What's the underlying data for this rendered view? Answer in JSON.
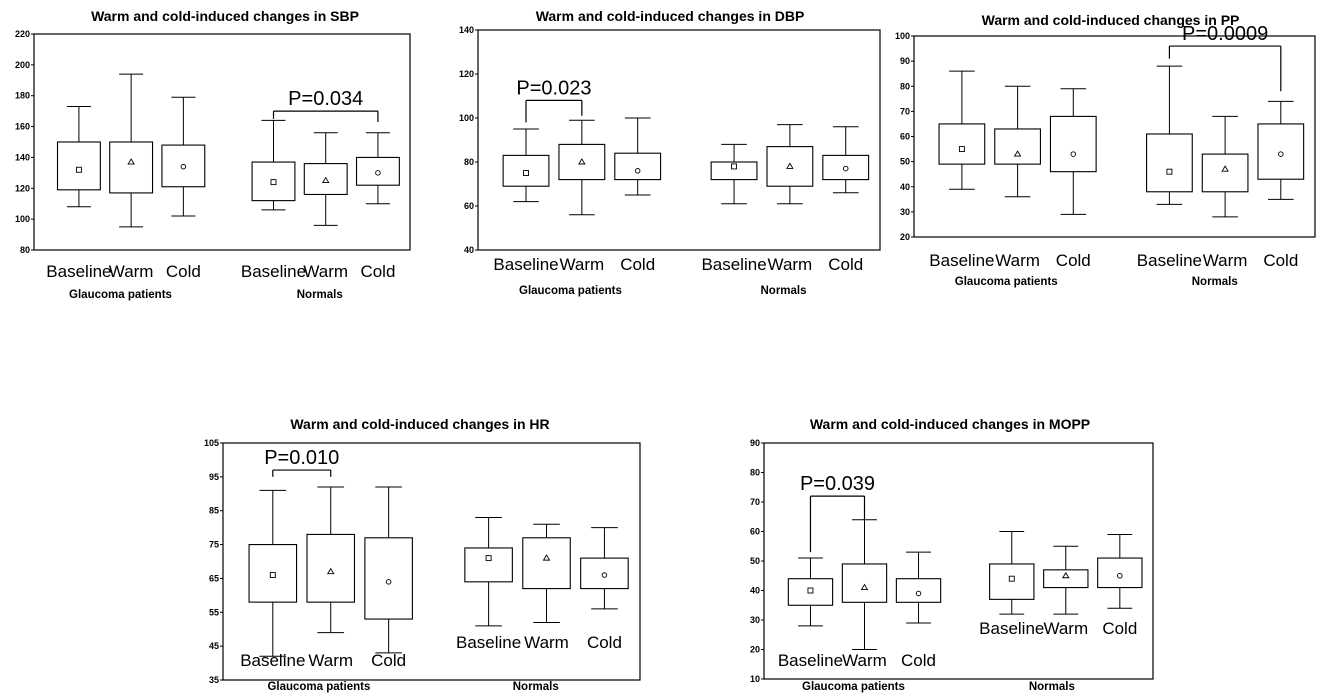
{
  "chart_data": [
    {
      "type": "box",
      "title": "Warm and cold-induced changes in SBP",
      "ylim": [
        80,
        220
      ],
      "yticks": [
        80,
        100,
        120,
        140,
        160,
        180,
        200,
        220
      ],
      "groups": [
        {
          "name": "Glaucoma patients",
          "categories": [
            "Baseline",
            "Warm",
            "Cold"
          ],
          "boxes": [
            {
              "min": 108,
              "q1": 119,
              "median": 132,
              "q3": 150,
              "max": 173,
              "mean": 132
            },
            {
              "min": 95,
              "q1": 117,
              "median": 137,
              "q3": 150,
              "max": 194,
              "mean": 137
            },
            {
              "min": 102,
              "q1": 121,
              "median": 134,
              "q3": 148,
              "max": 179,
              "mean": 134
            }
          ]
        },
        {
          "name": "Normals",
          "categories": [
            "Baseline",
            "Warm",
            "Cold"
          ],
          "boxes": [
            {
              "min": 106,
              "q1": 112,
              "median": 124,
              "q3": 137,
              "max": 164,
              "mean": 124
            },
            {
              "min": 96,
              "q1": 116,
              "median": 125,
              "q3": 136,
              "max": 156,
              "mean": 125
            },
            {
              "min": 110,
              "q1": 122,
              "median": 130,
              "q3": 140,
              "max": 156,
              "mean": 130
            }
          ]
        }
      ],
      "annotations": [
        {
          "text": "P=0.034",
          "from": [
            1,
            0
          ],
          "to": [
            1,
            2
          ],
          "y": 170,
          "leg_from": 165,
          "leg_to": 163
        }
      ]
    },
    {
      "type": "box",
      "title": "Warm and cold-induced changes in DBP",
      "ylim": [
        40,
        140
      ],
      "yticks": [
        40,
        60,
        80,
        100,
        120,
        140
      ],
      "groups": [
        {
          "name": "Glaucoma patients",
          "categories": [
            "Baseline",
            "Warm",
            "Cold"
          ],
          "boxes": [
            {
              "min": 62,
              "q1": 69,
              "median": 75,
              "q3": 83,
              "max": 95,
              "mean": 75
            },
            {
              "min": 56,
              "q1": 72,
              "median": 80,
              "q3": 88,
              "max": 99,
              "mean": 80
            },
            {
              "min": 65,
              "q1": 72,
              "median": 76,
              "q3": 84,
              "max": 100,
              "mean": 76
            }
          ]
        },
        {
          "name": "Normals",
          "categories": [
            "Baseline",
            "Warm",
            "Cold"
          ],
          "boxes": [
            {
              "min": 61,
              "q1": 72,
              "median": 78,
              "q3": 80,
              "max": 88,
              "mean": 78
            },
            {
              "min": 61,
              "q1": 69,
              "median": 78,
              "q3": 87,
              "max": 97,
              "mean": 78
            },
            {
              "min": 66,
              "q1": 72,
              "median": 77,
              "q3": 83,
              "max": 96,
              "mean": 77
            }
          ]
        }
      ],
      "annotations": [
        {
          "text": "P=0.023",
          "from": [
            0,
            0
          ],
          "to": [
            0,
            1
          ],
          "y": 108,
          "leg_from": 98,
          "leg_to": 101
        }
      ]
    },
    {
      "type": "box",
      "title": "Warm and cold-induced changes in PP",
      "ylim": [
        20,
        100
      ],
      "yticks": [
        20,
        30,
        40,
        50,
        60,
        70,
        80,
        90,
        100
      ],
      "groups": [
        {
          "name": "Glaucoma patients",
          "categories": [
            "Baseline",
            "Warm",
            "Cold"
          ],
          "boxes": [
            {
              "min": 39,
              "q1": 49,
              "median": 55,
              "q3": 65,
              "max": 86,
              "mean": 55
            },
            {
              "min": 36,
              "q1": 49,
              "median": 53,
              "q3": 63,
              "max": 80,
              "mean": 53
            },
            {
              "min": 29,
              "q1": 46,
              "median": 53,
              "q3": 68,
              "max": 79,
              "mean": 53
            }
          ]
        },
        {
          "name": "Normals",
          "categories": [
            "Baseline",
            "Warm",
            "Cold"
          ],
          "boxes": [
            {
              "min": 33,
              "q1": 38,
              "median": 46,
              "q3": 61,
              "max": 88,
              "mean": 46
            },
            {
              "min": 28,
              "q1": 38,
              "median": 47,
              "q3": 53,
              "max": 68,
              "mean": 47
            },
            {
              "min": 35,
              "q1": 43,
              "median": 53,
              "q3": 65,
              "max": 74,
              "mean": 53
            }
          ]
        }
      ],
      "annotations": [
        {
          "text": "P=0.0009",
          "from": [
            1,
            0
          ],
          "to": [
            1,
            2
          ],
          "y": 96,
          "leg_from": 91,
          "leg_to": 78
        }
      ]
    },
    {
      "type": "box",
      "title": "Warm and cold-induced changes in HR",
      "ylim": [
        35,
        105
      ],
      "yticks": [
        35,
        45,
        55,
        65,
        75,
        85,
        95,
        105
      ],
      "groups": [
        {
          "name": "Glaucoma patients",
          "categories": [
            "Baseline",
            "Warm",
            "Cold"
          ],
          "boxes": [
            {
              "min": 42,
              "q1": 58,
              "median": 66,
              "q3": 75,
              "max": 91,
              "mean": 66
            },
            {
              "min": 49,
              "q1": 58,
              "median": 67,
              "q3": 78,
              "max": 92,
              "mean": 67
            },
            {
              "min": 43,
              "q1": 53,
              "median": 64,
              "q3": 77,
              "max": 92,
              "mean": 64
            }
          ]
        },
        {
          "name": "Normals",
          "categories": [
            "Baseline",
            "Warm",
            "Cold"
          ],
          "boxes": [
            {
              "min": 51,
              "q1": 64,
              "median": 71,
              "q3": 74,
              "max": 83,
              "mean": 71
            },
            {
              "min": 52,
              "q1": 62,
              "median": 71,
              "q3": 77,
              "max": 81,
              "mean": 71
            },
            {
              "min": 56,
              "q1": 62,
              "median": 66,
              "q3": 71,
              "max": 80,
              "mean": 66
            }
          ]
        }
      ],
      "annotations": [
        {
          "text": "P=0.010",
          "from": [
            0,
            0
          ],
          "to": [
            0,
            1
          ],
          "y": 97,
          "leg_from": 95,
          "leg_to": 95
        }
      ]
    },
    {
      "type": "box",
      "title": "Warm and cold-induced changes in MOPP",
      "ylim": [
        10,
        90
      ],
      "yticks": [
        10,
        20,
        30,
        40,
        50,
        60,
        70,
        80,
        90
      ],
      "groups": [
        {
          "name": "Glaucoma patients",
          "categories": [
            "Baseline",
            "Warm",
            "Cold"
          ],
          "boxes": [
            {
              "min": 28,
              "q1": 35,
              "median": 40,
              "q3": 44,
              "max": 51,
              "mean": 40
            },
            {
              "min": 20,
              "q1": 36,
              "median": 41,
              "q3": 49,
              "max": 64,
              "mean": 41
            },
            {
              "min": 29,
              "q1": 36,
              "median": 39,
              "q3": 44,
              "max": 53,
              "mean": 39
            }
          ]
        },
        {
          "name": "Normals",
          "categories": [
            "Baseline",
            "Warm",
            "Cold"
          ],
          "boxes": [
            {
              "min": 32,
              "q1": 37,
              "median": 44,
              "q3": 49,
              "max": 60,
              "mean": 44
            },
            {
              "min": 32,
              "q1": 41,
              "median": 45,
              "q3": 47,
              "max": 55,
              "mean": 45
            },
            {
              "min": 34,
              "q1": 41,
              "median": 45,
              "q3": 51,
              "max": 59,
              "mean": 45
            }
          ]
        }
      ],
      "annotations": [
        {
          "text": "P=0.039",
          "from": [
            0,
            0
          ],
          "to": [
            0,
            1
          ],
          "y": 72,
          "leg_from": 53,
          "leg_to": 64
        }
      ]
    }
  ]
}
